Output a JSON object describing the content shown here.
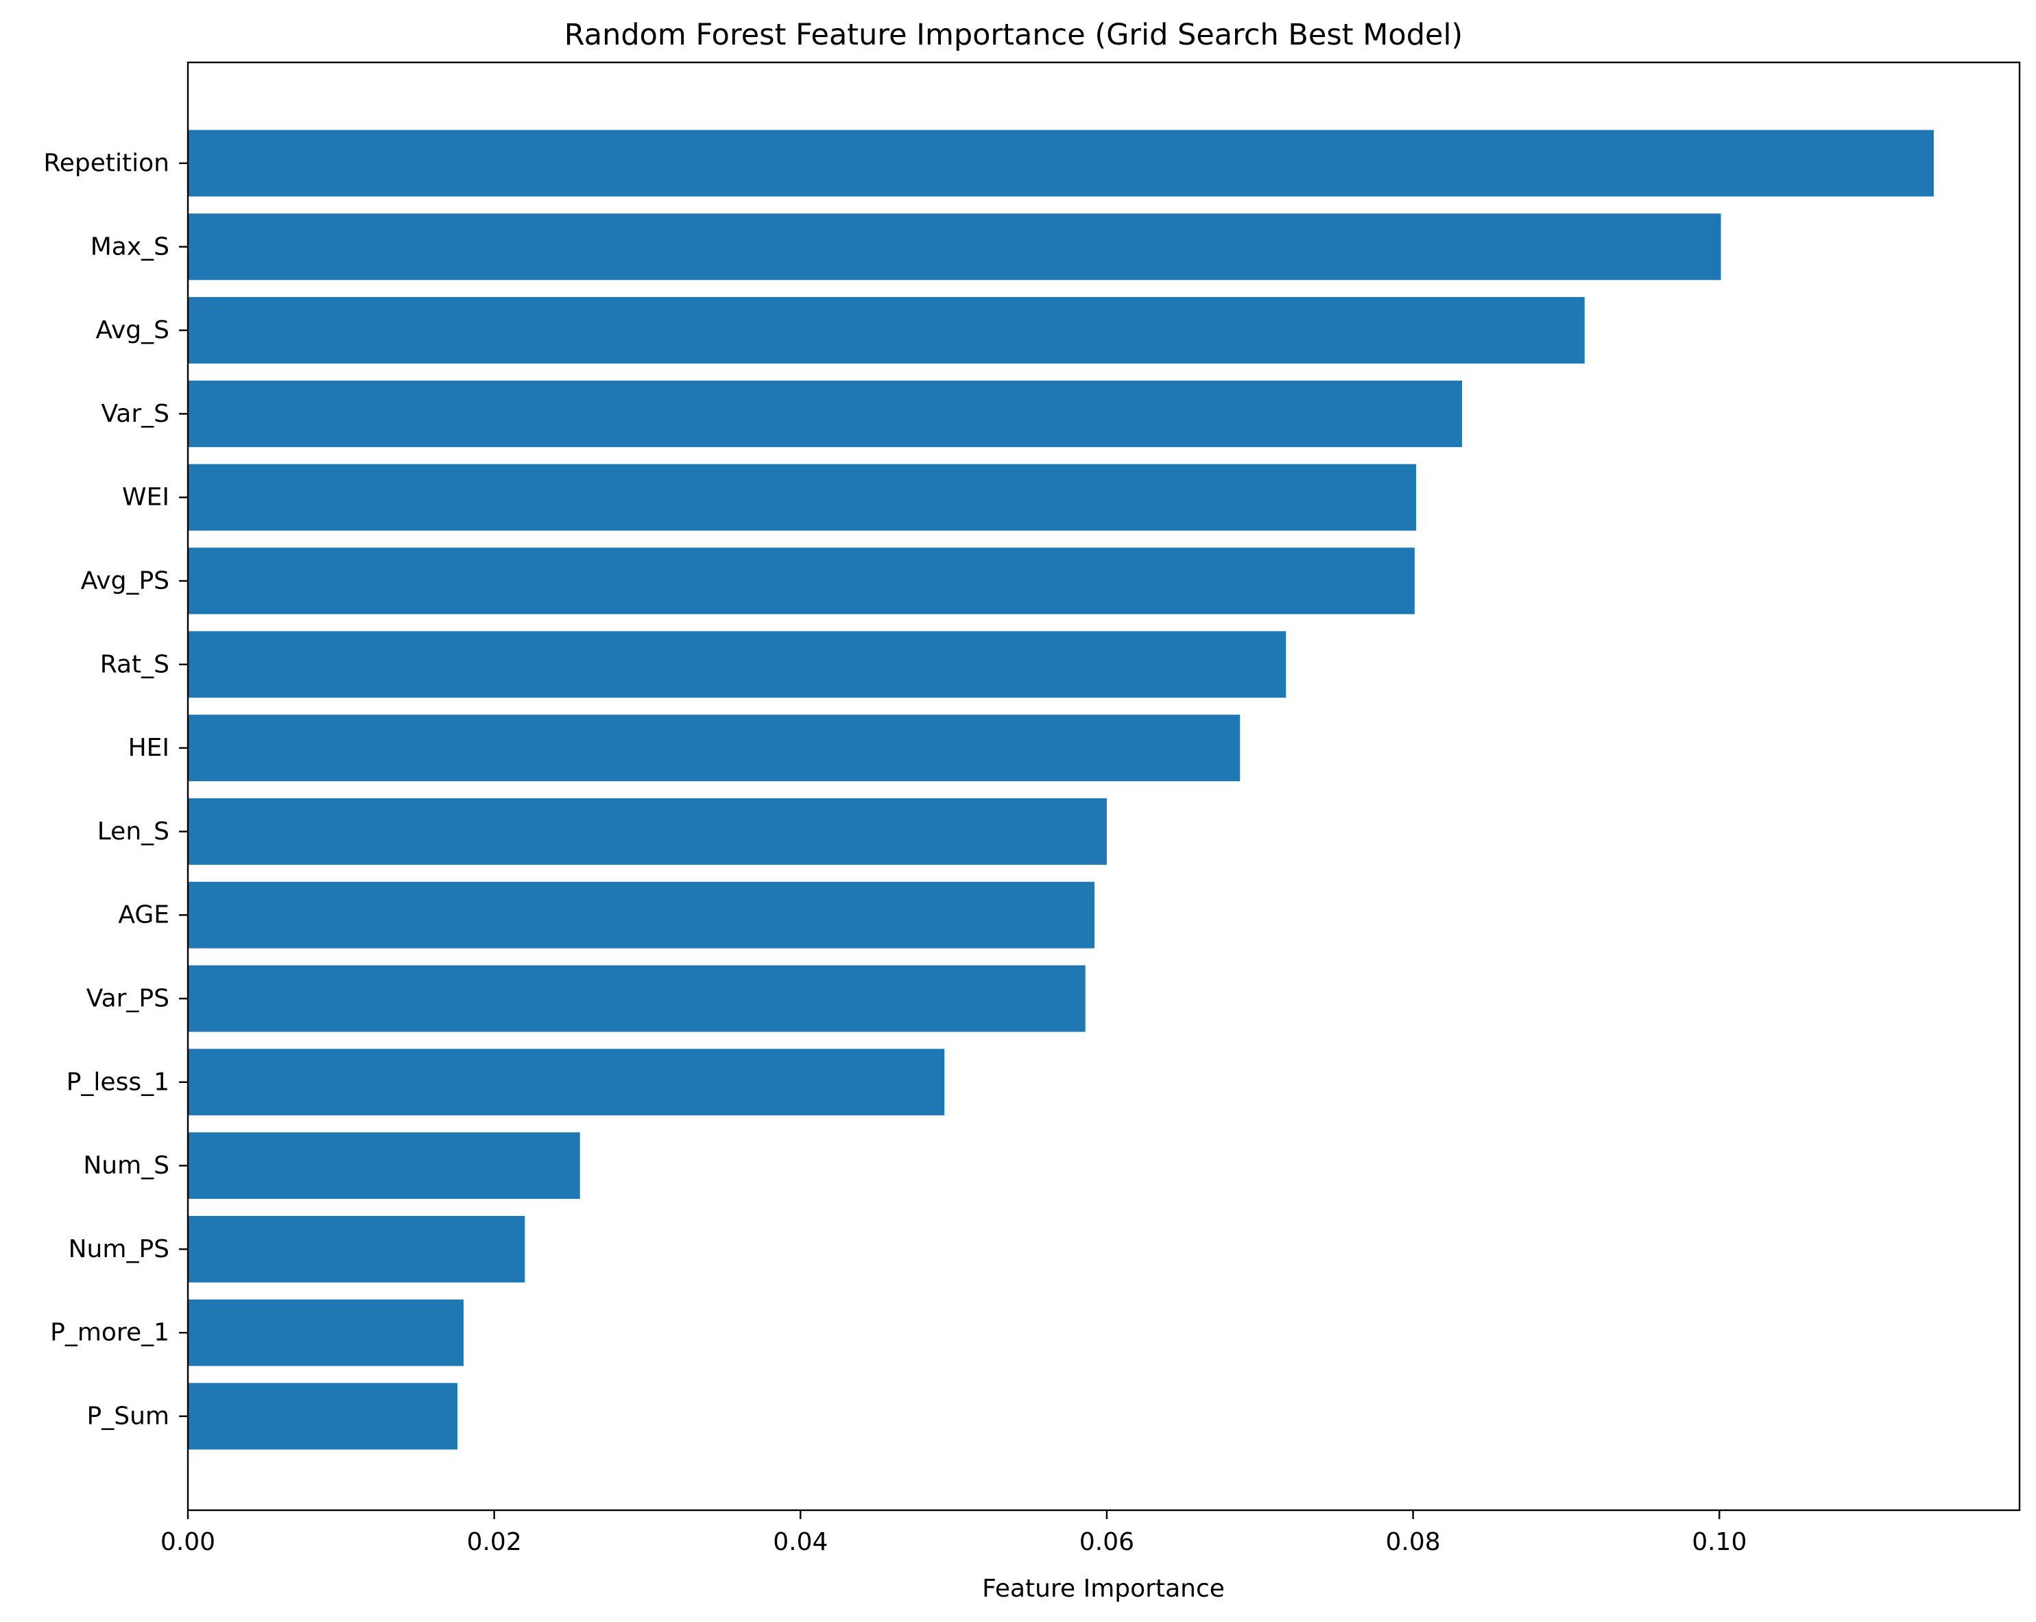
{
  "chart_data": {
    "type": "bar",
    "orientation": "horizontal",
    "title": "Random Forest Feature Importance (Grid Search Best Model)",
    "xlabel": "Feature Importance",
    "ylabel": "",
    "xlim": [
      0,
      0.1196
    ],
    "xticks": [
      0.0,
      0.02,
      0.04,
      0.06,
      0.08,
      0.1
    ],
    "xtick_labels": [
      "0.00",
      "0.02",
      "0.04",
      "0.06",
      "0.08",
      "0.10"
    ],
    "grid": false,
    "legend": "none",
    "bar_color": "#1f77b4",
    "categories": [
      "Repetition",
      "Max_S",
      "Avg_S",
      "Var_S",
      "WEI",
      "Avg_PS",
      "Rat_S",
      "HEI",
      "Len_S",
      "AGE",
      "Var_PS",
      "P_less_1",
      "Num_S",
      "Num_PS",
      "P_more_1",
      "P_Sum"
    ],
    "values": [
      0.114,
      0.1001,
      0.0912,
      0.0832,
      0.0802,
      0.0801,
      0.0717,
      0.0687,
      0.06,
      0.0592,
      0.0586,
      0.0494,
      0.0256,
      0.022,
      0.018,
      0.0176
    ]
  }
}
